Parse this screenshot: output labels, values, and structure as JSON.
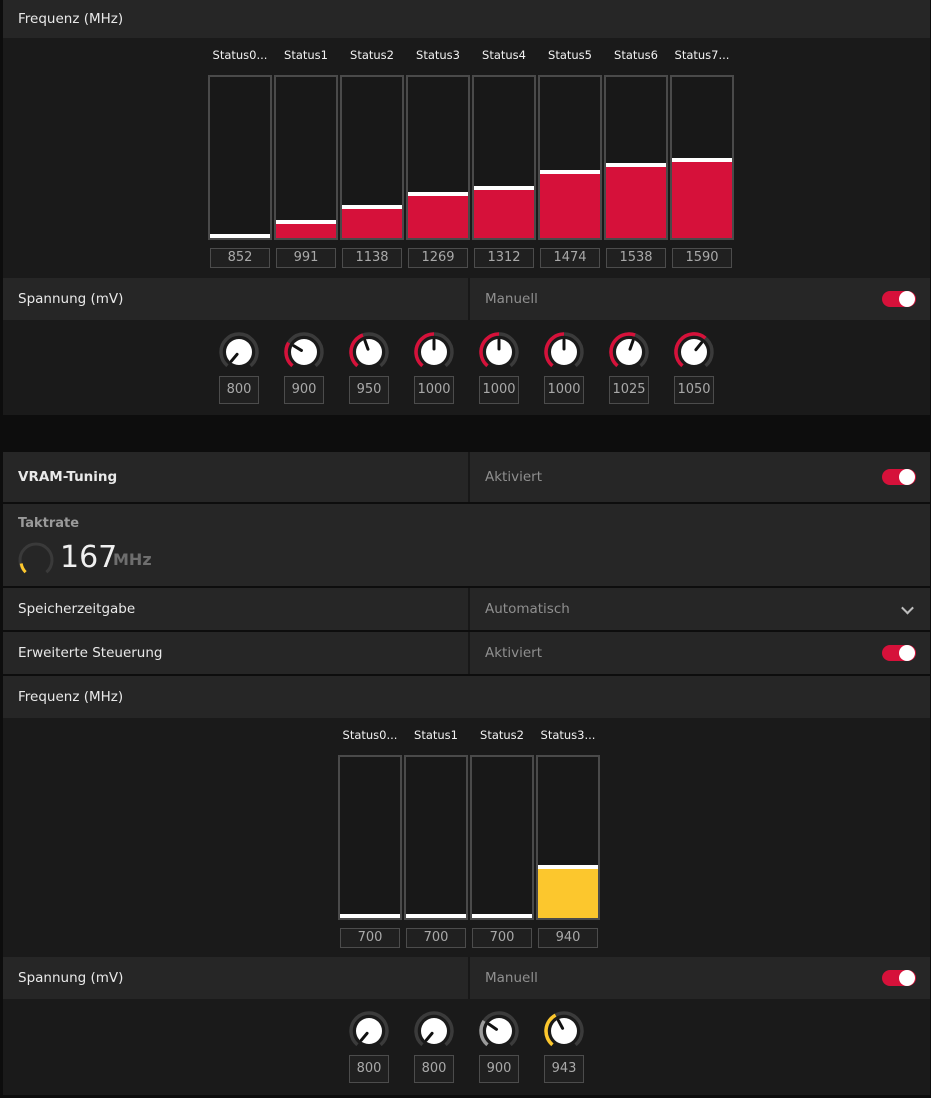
{
  "gpu": {
    "freq_label": "Frequenz (MHz)",
    "states": [
      {
        "title": "Status0...",
        "value": "852",
        "level": 0.0
      },
      {
        "title": "Status1",
        "value": "991",
        "level": 0.086
      },
      {
        "title": "Status2",
        "value": "1138",
        "level": 0.187
      },
      {
        "title": "Status3",
        "value": "1269",
        "level": 0.266
      },
      {
        "title": "Status4",
        "value": "1312",
        "level": 0.305
      },
      {
        "title": "Status5",
        "value": "1474",
        "level": 0.406
      },
      {
        "title": "Status6",
        "value": "1538",
        "level": 0.453
      },
      {
        "title": "Status7...",
        "value": "1590",
        "level": 0.484
      }
    ],
    "volt_label": "Spannung (mV)",
    "volt_mode": "Manuell",
    "volts": [
      {
        "value": "800",
        "level": 0.0
      },
      {
        "value": "900",
        "level": 0.29
      },
      {
        "value": "950",
        "level": 0.43
      },
      {
        "value": "1000",
        "level": 0.5
      },
      {
        "value": "1000",
        "level": 0.5
      },
      {
        "value": "1000",
        "level": 0.5
      },
      {
        "value": "1025",
        "level": 0.57
      },
      {
        "value": "1050",
        "level": 0.64
      }
    ]
  },
  "vram": {
    "title": "VRAM-Tuning",
    "status": "Aktiviert",
    "clock_label": "Taktrate",
    "clock_value": "167",
    "clock_unit": "MHz",
    "timing_label": "Speicherzeitgabe",
    "timing_value": "Automatisch",
    "adv_label": "Erweiterte Steuerung",
    "adv_value": "Aktiviert",
    "freq_label": "Frequenz (MHz)",
    "states": [
      {
        "title": "Status0...",
        "value": "700",
        "level": 0.0
      },
      {
        "title": "Status1",
        "value": "700",
        "level": 0.0
      },
      {
        "title": "Status2",
        "value": "700",
        "level": 0.0
      },
      {
        "title": "Status3...",
        "value": "940",
        "level": 0.31
      }
    ],
    "volt_label": "Spannung (mV)",
    "volt_mode": "Manuell",
    "volts": [
      {
        "value": "800",
        "level": 0.0
      },
      {
        "value": "800",
        "level": 0.0
      },
      {
        "value": "900",
        "level": 0.3
      },
      {
        "value": "943",
        "level": 0.4
      }
    ]
  },
  "colors": {
    "gpu_accent": "#d6113a",
    "vram_accent": "#fcc72d",
    "vram_knob_gray": "#9b9b9b"
  }
}
